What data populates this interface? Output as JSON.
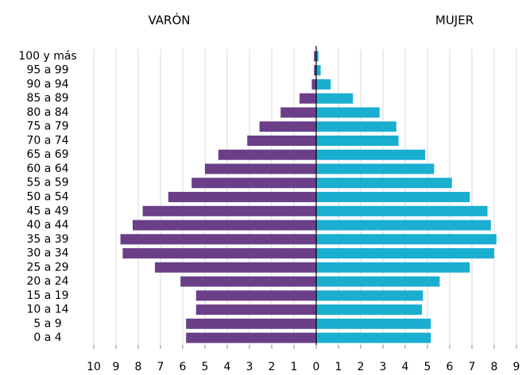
{
  "chart_data": {
    "type": "pyramid",
    "categories": [
      "100 y más",
      "95 a 99",
      "90 a 94",
      "85 a 89",
      "80 a 84",
      "75 a 79",
      "70 a 74",
      "65 a 69",
      "60 a 64",
      "55 a 59",
      "50 a 54",
      "45 a 49",
      "40 a 44",
      "35 a 39",
      "30 a 34",
      "25 a 29",
      "20 a 24",
      "15 a 19",
      "10 a 14",
      "5 a 9",
      "0 a 4"
    ],
    "series": [
      {
        "name": "VARÓN",
        "color": "#6b3f87",
        "side": "left",
        "values": [
          0.1,
          0.1,
          0.2,
          0.75,
          1.6,
          2.55,
          3.1,
          4.4,
          5.0,
          5.6,
          6.65,
          7.8,
          8.25,
          8.8,
          8.7,
          7.25,
          6.1,
          5.4,
          5.4,
          5.85,
          5.85
        ]
      },
      {
        "name": "MUJER",
        "color": "#1aaed0",
        "side": "right",
        "values": [
          0.1,
          0.2,
          0.65,
          1.65,
          2.85,
          3.6,
          3.7,
          4.9,
          5.3,
          6.1,
          6.9,
          7.7,
          7.85,
          8.1,
          8.0,
          6.9,
          5.55,
          4.8,
          4.75,
          5.15,
          5.15
        ]
      }
    ],
    "xlim": [
      -10,
      9
    ],
    "xticks": [
      {
        "value": -10,
        "label": "10"
      },
      {
        "value": -9,
        "label": "9"
      },
      {
        "value": -8,
        "label": "8"
      },
      {
        "value": -7,
        "label": "7"
      },
      {
        "value": -6,
        "label": "6"
      },
      {
        "value": -5,
        "label": "5"
      },
      {
        "value": -4,
        "label": "4"
      },
      {
        "value": -3,
        "label": "3"
      },
      {
        "value": -2,
        "label": "2"
      },
      {
        "value": -1,
        "label": "1"
      },
      0,
      1,
      2,
      3,
      4,
      5,
      6,
      7,
      8,
      9
    ],
    "grid": true
  }
}
